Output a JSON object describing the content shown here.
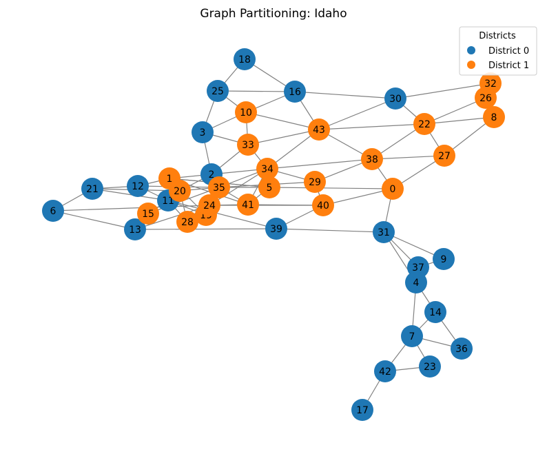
{
  "title": "Graph Partitioning: Idaho",
  "legend": {
    "title": "Districts",
    "entries": [
      {
        "label": "District 0",
        "color": "#1f77b4"
      },
      {
        "label": "District 1",
        "color": "#ff7f0e"
      }
    ]
  },
  "colors": {
    "edge": "#808080",
    "district_0": "#1f77b4",
    "district_1": "#ff7f0e"
  },
  "nodes": [
    {
      "id": "0",
      "district": 1
    },
    {
      "id": "1",
      "district": 1
    },
    {
      "id": "2",
      "district": 0
    },
    {
      "id": "3",
      "district": 0
    },
    {
      "id": "4",
      "district": 0
    },
    {
      "id": "5",
      "district": 1
    },
    {
      "id": "6",
      "district": 0
    },
    {
      "id": "7",
      "district": 0
    },
    {
      "id": "8",
      "district": 1
    },
    {
      "id": "9",
      "district": 0
    },
    {
      "id": "10",
      "district": 1
    },
    {
      "id": "11",
      "district": 0
    },
    {
      "id": "12",
      "district": 0
    },
    {
      "id": "13",
      "district": 0
    },
    {
      "id": "14",
      "district": 0
    },
    {
      "id": "15",
      "district": 1
    },
    {
      "id": "16",
      "district": 0
    },
    {
      "id": "17",
      "district": 0
    },
    {
      "id": "18",
      "district": 0
    },
    {
      "id": "19",
      "district": 1
    },
    {
      "id": "20",
      "district": 1
    },
    {
      "id": "21",
      "district": 0
    },
    {
      "id": "22",
      "district": 1
    },
    {
      "id": "23",
      "district": 0
    },
    {
      "id": "24",
      "district": 1
    },
    {
      "id": "25",
      "district": 0
    },
    {
      "id": "26",
      "district": 1
    },
    {
      "id": "27",
      "district": 1
    },
    {
      "id": "28",
      "district": 1
    },
    {
      "id": "29",
      "district": 1
    },
    {
      "id": "30",
      "district": 0
    },
    {
      "id": "31",
      "district": 0
    },
    {
      "id": "32",
      "district": 1
    },
    {
      "id": "33",
      "district": 1
    },
    {
      "id": "34",
      "district": 1
    },
    {
      "id": "35",
      "district": 1
    },
    {
      "id": "36",
      "district": 0
    },
    {
      "id": "37",
      "district": 0
    },
    {
      "id": "38",
      "district": 1
    },
    {
      "id": "39",
      "district": 0
    },
    {
      "id": "40",
      "district": 1
    },
    {
      "id": "41",
      "district": 1
    },
    {
      "id": "42",
      "district": 0
    },
    {
      "id": "43",
      "district": 1
    }
  ],
  "edges": [
    [
      "18",
      "25"
    ],
    [
      "18",
      "16"
    ],
    [
      "25",
      "16"
    ],
    [
      "25",
      "3"
    ],
    [
      "25",
      "10"
    ],
    [
      "16",
      "10"
    ],
    [
      "16",
      "43"
    ],
    [
      "16",
      "30"
    ],
    [
      "3",
      "10"
    ],
    [
      "3",
      "33"
    ],
    [
      "3",
      "2"
    ],
    [
      "10",
      "33"
    ],
    [
      "10",
      "43"
    ],
    [
      "30",
      "32"
    ],
    [
      "30",
      "22"
    ],
    [
      "30",
      "43"
    ],
    [
      "26",
      "22"
    ],
    [
      "26",
      "32"
    ],
    [
      "8",
      "22"
    ],
    [
      "8",
      "27"
    ],
    [
      "22",
      "43"
    ],
    [
      "22",
      "27"
    ],
    [
      "22",
      "38"
    ],
    [
      "43",
      "33"
    ],
    [
      "43",
      "38"
    ],
    [
      "43",
      "34"
    ],
    [
      "33",
      "2"
    ],
    [
      "33",
      "34"
    ],
    [
      "38",
      "0"
    ],
    [
      "38",
      "27"
    ],
    [
      "38",
      "29"
    ],
    [
      "38",
      "34"
    ],
    [
      "27",
      "0"
    ],
    [
      "34",
      "2"
    ],
    [
      "34",
      "29"
    ],
    [
      "34",
      "5"
    ],
    [
      "34",
      "24"
    ],
    [
      "34",
      "35"
    ],
    [
      "34",
      "41"
    ],
    [
      "2",
      "20"
    ],
    [
      "2",
      "1"
    ],
    [
      "2",
      "35"
    ],
    [
      "29",
      "40"
    ],
    [
      "29",
      "35"
    ],
    [
      "5",
      "0"
    ],
    [
      "5",
      "35"
    ],
    [
      "5",
      "1"
    ],
    [
      "5",
      "41"
    ],
    [
      "0",
      "40"
    ],
    [
      "0",
      "31"
    ],
    [
      "40",
      "41"
    ],
    [
      "40",
      "39"
    ],
    [
      "40",
      "24"
    ],
    [
      "39",
      "31"
    ],
    [
      "39",
      "13"
    ],
    [
      "39",
      "11"
    ],
    [
      "31",
      "9"
    ],
    [
      "31",
      "37"
    ],
    [
      "31",
      "4"
    ],
    [
      "9",
      "37"
    ],
    [
      "37",
      "4"
    ],
    [
      "4",
      "14"
    ],
    [
      "4",
      "7"
    ],
    [
      "14",
      "7"
    ],
    [
      "14",
      "36"
    ],
    [
      "7",
      "36"
    ],
    [
      "7",
      "23"
    ],
    [
      "7",
      "42"
    ],
    [
      "23",
      "42"
    ],
    [
      "42",
      "17"
    ],
    [
      "21",
      "12"
    ],
    [
      "21",
      "6"
    ],
    [
      "21",
      "11"
    ],
    [
      "21",
      "20"
    ],
    [
      "12",
      "1"
    ],
    [
      "12",
      "11"
    ],
    [
      "6",
      "13"
    ],
    [
      "6",
      "24"
    ],
    [
      "13",
      "15"
    ],
    [
      "13",
      "24"
    ],
    [
      "15",
      "11"
    ],
    [
      "15",
      "35"
    ],
    [
      "11",
      "19"
    ],
    [
      "11",
      "28"
    ],
    [
      "11",
      "20"
    ],
    [
      "20",
      "35"
    ],
    [
      "20",
      "28"
    ],
    [
      "1",
      "19"
    ],
    [
      "1",
      "5"
    ],
    [
      "28",
      "19"
    ],
    [
      "28",
      "35"
    ],
    [
      "24",
      "19"
    ],
    [
      "24",
      "41"
    ],
    [
      "24",
      "35"
    ],
    [
      "41",
      "35"
    ],
    [
      "19",
      "35"
    ],
    [
      "35",
      "12"
    ],
    [
      "1",
      "41"
    ]
  ]
}
